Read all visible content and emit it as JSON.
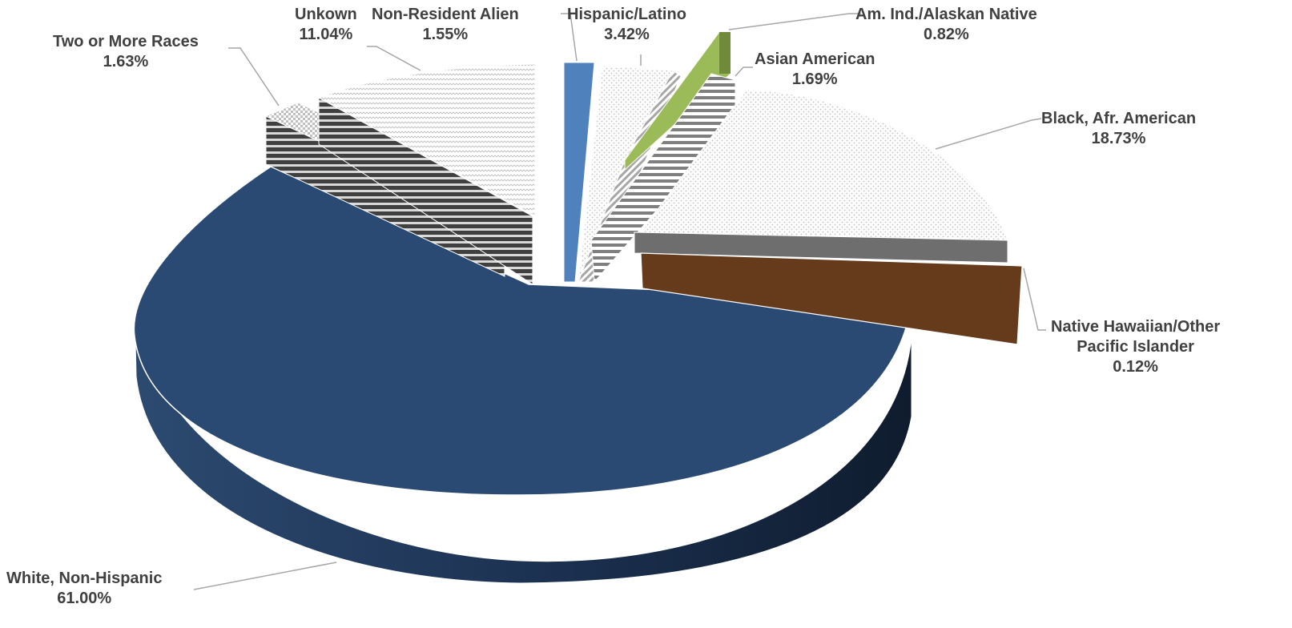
{
  "chart_data": {
    "type": "pie",
    "variant": "3d-exploded",
    "title": "",
    "slices": [
      {
        "name": "Hispanic/Latino",
        "label": "Hispanic/Latino",
        "value": 3.42,
        "display": "3.42%",
        "color": "#4f81bd",
        "fill": "solid"
      },
      {
        "name": "Am. Ind./Alaskan Native",
        "label": "Am. Ind./Alaskan Native",
        "value": 0.82,
        "display": "0.82%",
        "color": "#9bbb59",
        "fill": "solid"
      },
      {
        "name": "Asian American",
        "label": "Asian American",
        "value": 1.69,
        "display": "1.69%",
        "color": "#7f7f7f",
        "fill": "horizontal-stripes"
      },
      {
        "name": "Black, Afr. American",
        "label": "Black, Afr. American",
        "value": 18.73,
        "display": "18.73%",
        "color": "#d9d9d9",
        "fill": "dotted"
      },
      {
        "name": "Native Hawaiian/Other Pacific Islander",
        "label": "Native Hawaiian/Other Pacific Islander",
        "label_lines": [
          "Native Hawaiian/Other",
          "Pacific Islander"
        ],
        "value": 0.12,
        "display": "0.12%",
        "color": "#7f7f7f",
        "fill": "solid"
      },
      {
        "name": "White, Non-Hispanic",
        "label": "White, Non-Hispanic",
        "value": 61.0,
        "display": "61.00%",
        "color": "#2a4a73",
        "fill": "solid"
      },
      {
        "name": "Two or More Races",
        "label": "Two or More Races",
        "value": 1.63,
        "display": "1.63%",
        "color": "#595959",
        "fill": "horizontal-stripes"
      },
      {
        "name": "Unkown",
        "label": "Unkown",
        "value": 11.04,
        "display": "11.04%",
        "color": "#d9d9d9",
        "fill": "zigzag"
      },
      {
        "name": "Non-Resident Alien",
        "label": "Non-Resident Alien",
        "value": 1.55,
        "display": "1.55%",
        "color": "#a6a6a6",
        "fill": "diagonal"
      }
    ],
    "accent_colors": {
      "brown_side": "#653b1c",
      "navy_side": "#1a2d46",
      "label_text": "#404040",
      "leader_line": "#a6a6a6"
    }
  }
}
